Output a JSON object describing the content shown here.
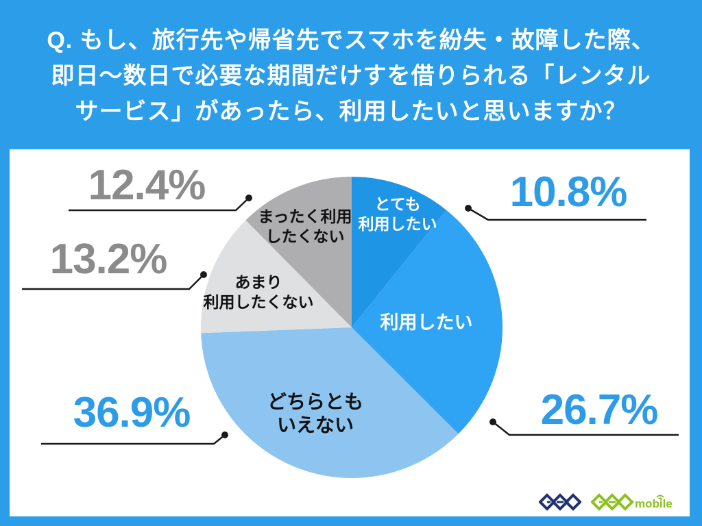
{
  "page": {
    "bg_color": "#2b9de9",
    "title_lines": [
      "Q. もし、旅行先や帰省先でスマホを紛失・故障した際、",
      "即日〜数日で必要な期間だけすを借りられる「レンタル",
      "サービス」があったら、利用したいと思いますか？"
    ]
  },
  "chart_data": {
    "type": "pie",
    "title": "Q. もし、旅行先や帰省先でスマホを紛失・故障した際、即日〜数日で必要な期間だけすを借りられる「レンタルサービス」があったら、利用したいと思いますか？",
    "categories": [
      "とても利用したい",
      "利用したい",
      "どちらともいえない",
      "あまり利用したくない",
      "まったく利用したくない"
    ],
    "values": [
      10.8,
      26.7,
      36.9,
      13.2,
      12.4
    ],
    "unit": "%",
    "colors": [
      "#1f95e6",
      "#30a4f4",
      "#8ec5f0",
      "#dfe0e2",
      "#aeaeb0"
    ],
    "start_angle_deg": 0,
    "direction": "clockwise",
    "labels_inside": true,
    "legend_position": "none"
  },
  "slice_labels": {
    "totemo": {
      "line1": "とても",
      "line2": "利用したい"
    },
    "riyou": {
      "line1": "利用したい"
    },
    "dochira": {
      "line1": "どちらとも",
      "line2": "いえない"
    },
    "amari": {
      "line1": "あまり",
      "line2": "利用したくない"
    },
    "mattaku": {
      "line1": "まったく利用",
      "line2": "したくない"
    }
  },
  "callouts": {
    "totemo": {
      "label": "10.8%",
      "color": "#2d9ce8"
    },
    "riyou": {
      "label": "26.7%",
      "color": "#2d9ce8"
    },
    "dochira": {
      "label": "36.9%",
      "color": "#2d9ce8"
    },
    "amari": {
      "label": "13.2%",
      "color": "#8b8b8b"
    },
    "mattaku": {
      "label": "12.4%",
      "color": "#8b8b8b"
    }
  },
  "footer": {
    "geo_logo_text": "GEO",
    "geo_logo_color": "#203271",
    "geo_mobile_logo_text": "GEO",
    "geo_mobile_word": "mobile",
    "geo_mobile_color": "#8cc11e"
  }
}
